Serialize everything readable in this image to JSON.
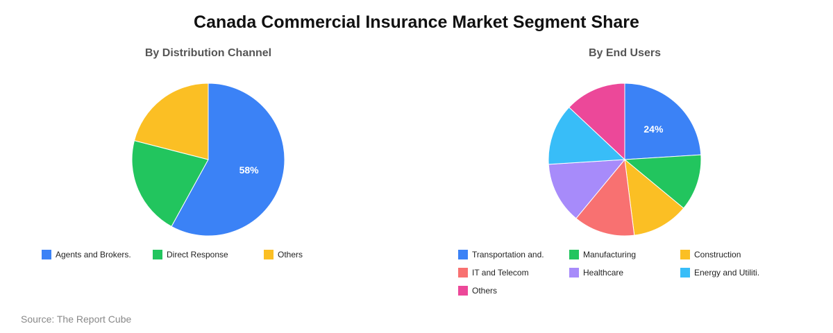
{
  "title": "Canada Commercial Insurance Market Segment Share",
  "source": "Source: The Report Cube",
  "chart_data": [
    {
      "type": "pie",
      "title": "By Distribution Channel",
      "labels": [
        "Agents and Brokers.",
        "Direct Response",
        "Others"
      ],
      "values": [
        58,
        21,
        21
      ],
      "colors": [
        "#3b82f6",
        "#22c55e",
        "#fbbf24"
      ],
      "data_labels": [
        "58%",
        "",
        ""
      ],
      "legend_position": "bottom"
    },
    {
      "type": "pie",
      "title": "By End Users",
      "labels": [
        "Transportation and.",
        "Manufacturing",
        "Construction",
        "IT and Telecom",
        "Healthcare",
        "Energy and Utiliti.",
        "Others"
      ],
      "values": [
        24,
        12,
        12,
        13,
        13,
        13,
        13
      ],
      "colors": [
        "#3b82f6",
        "#22c55e",
        "#fbbf24",
        "#f87171",
        "#a78bfa",
        "#38bdf8",
        "#ec4899"
      ],
      "data_labels": [
        "24%",
        "",
        "",
        "",
        "",
        "",
        ""
      ],
      "legend_position": "bottom"
    }
  ]
}
